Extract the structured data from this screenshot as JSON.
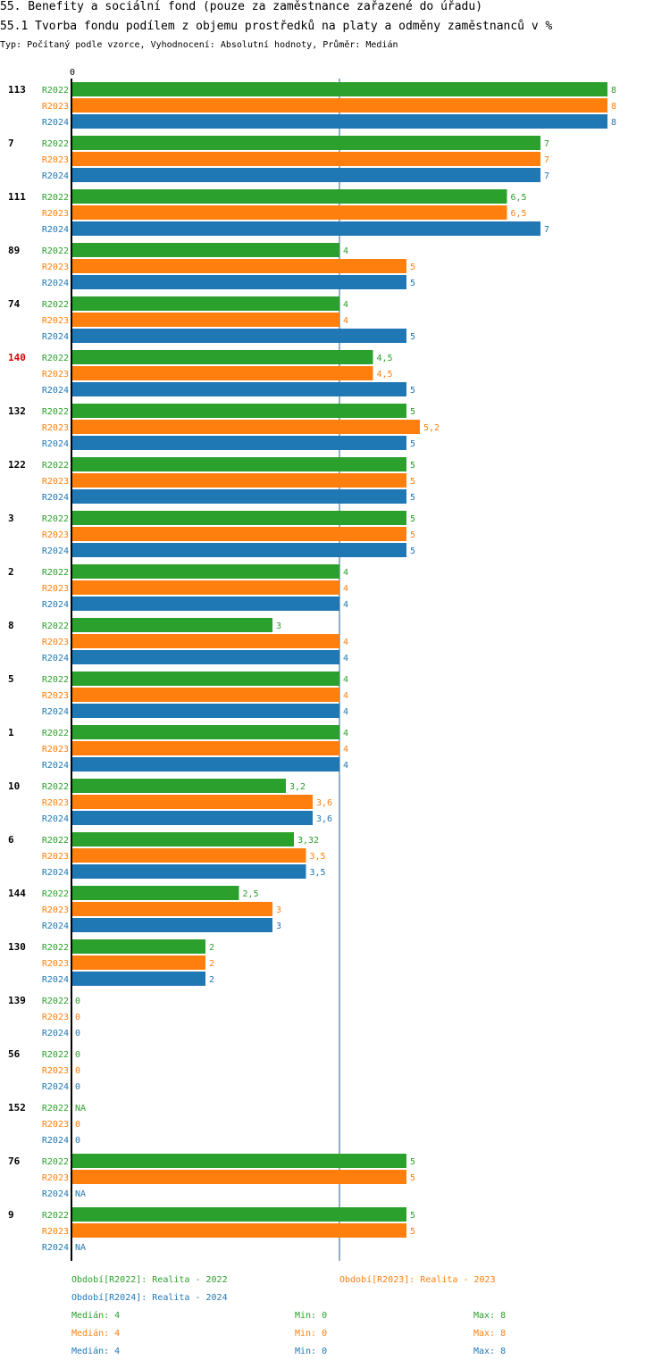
{
  "header": {
    "title1": "55. Benefity a sociální fond (pouze za zaměstnance zařazené do úřadu)",
    "title2": "55.1 Tvorba fondu podílem z objemu prostředků na platy a odměny zaměstnanců v %",
    "subtitle": "Typ: Počítaný podle vzorce, Vyhodnocení: Absolutní hodnoty, Průměr: Medián"
  },
  "chart_data": {
    "type": "bar",
    "orientation": "horizontal",
    "xlim": [
      0,
      8
    ],
    "x_tick_label": "0",
    "reference_line": 4,
    "highlight_category": "140",
    "series": [
      {
        "name": "R2022",
        "color": "#2ca02c"
      },
      {
        "name": "R2023",
        "color": "#ff7f0e"
      },
      {
        "name": "R2024",
        "color": "#1f77b4"
      }
    ],
    "groups": [
      {
        "id": "113",
        "values": [
          8,
          8,
          8
        ],
        "labels": [
          "8",
          "8",
          "8"
        ]
      },
      {
        "id": "7",
        "values": [
          7,
          7,
          7
        ],
        "labels": [
          "7",
          "7",
          "7"
        ]
      },
      {
        "id": "111",
        "values": [
          6.5,
          6.5,
          7
        ],
        "labels": [
          "6,5",
          "6,5",
          "7"
        ]
      },
      {
        "id": "89",
        "values": [
          4,
          5,
          5
        ],
        "labels": [
          "4",
          "5",
          "5"
        ]
      },
      {
        "id": "74",
        "values": [
          4,
          4,
          5
        ],
        "labels": [
          "4",
          "4",
          "5"
        ]
      },
      {
        "id": "140",
        "values": [
          4.5,
          4.5,
          5
        ],
        "labels": [
          "4,5",
          "4,5",
          "5"
        ]
      },
      {
        "id": "132",
        "values": [
          5,
          5.2,
          5
        ],
        "labels": [
          "5",
          "5,2",
          "5"
        ]
      },
      {
        "id": "122",
        "values": [
          5,
          5,
          5
        ],
        "labels": [
          "5",
          "5",
          "5"
        ]
      },
      {
        "id": "3",
        "values": [
          5,
          5,
          5
        ],
        "labels": [
          "5",
          "5",
          "5"
        ]
      },
      {
        "id": "2",
        "values": [
          4,
          4,
          4
        ],
        "labels": [
          "4",
          "4",
          "4"
        ]
      },
      {
        "id": "8",
        "values": [
          3,
          4,
          4
        ],
        "labels": [
          "3",
          "4",
          "4"
        ]
      },
      {
        "id": "5",
        "values": [
          4,
          4,
          4
        ],
        "labels": [
          "4",
          "4",
          "4"
        ]
      },
      {
        "id": "1",
        "values": [
          4,
          4,
          4
        ],
        "labels": [
          "4",
          "4",
          "4"
        ]
      },
      {
        "id": "10",
        "values": [
          3.2,
          3.6,
          3.6
        ],
        "labels": [
          "3,2",
          "3,6",
          "3,6"
        ]
      },
      {
        "id": "6",
        "values": [
          3.32,
          3.5,
          3.5
        ],
        "labels": [
          "3,32",
          "3,5",
          "3,5"
        ]
      },
      {
        "id": "144",
        "values": [
          2.5,
          3,
          3
        ],
        "labels": [
          "2,5",
          "3",
          "3"
        ]
      },
      {
        "id": "130",
        "values": [
          2,
          2,
          2
        ],
        "labels": [
          "2",
          "2",
          "2"
        ]
      },
      {
        "id": "139",
        "values": [
          0,
          0,
          0
        ],
        "labels": [
          "0",
          "0",
          "0"
        ]
      },
      {
        "id": "56",
        "values": [
          0,
          0,
          0
        ],
        "labels": [
          "0",
          "0",
          "0"
        ]
      },
      {
        "id": "152",
        "values": [
          null,
          0,
          0
        ],
        "labels": [
          "NA",
          "0",
          "0"
        ]
      },
      {
        "id": "76",
        "values": [
          5,
          5,
          null
        ],
        "labels": [
          "5",
          "5",
          "NA"
        ]
      },
      {
        "id": "9",
        "values": [
          5,
          5,
          null
        ],
        "labels": [
          "5",
          "5",
          "NA"
        ]
      }
    ]
  },
  "legend": {
    "periods": [
      "Období[R2022]: Realita - 2022",
      "Období[R2023]: Realita - 2023",
      "Období[R2024]: Realita - 2024"
    ],
    "stats": [
      {
        "median": "Medián: 4",
        "min": "Min: 0",
        "max": "Max: 8"
      },
      {
        "median": "Medián: 4",
        "min": "Min: 0",
        "max": "Max: 8"
      },
      {
        "median": "Medián: 4",
        "min": "Min: 0",
        "max": "Max: 8"
      }
    ]
  }
}
